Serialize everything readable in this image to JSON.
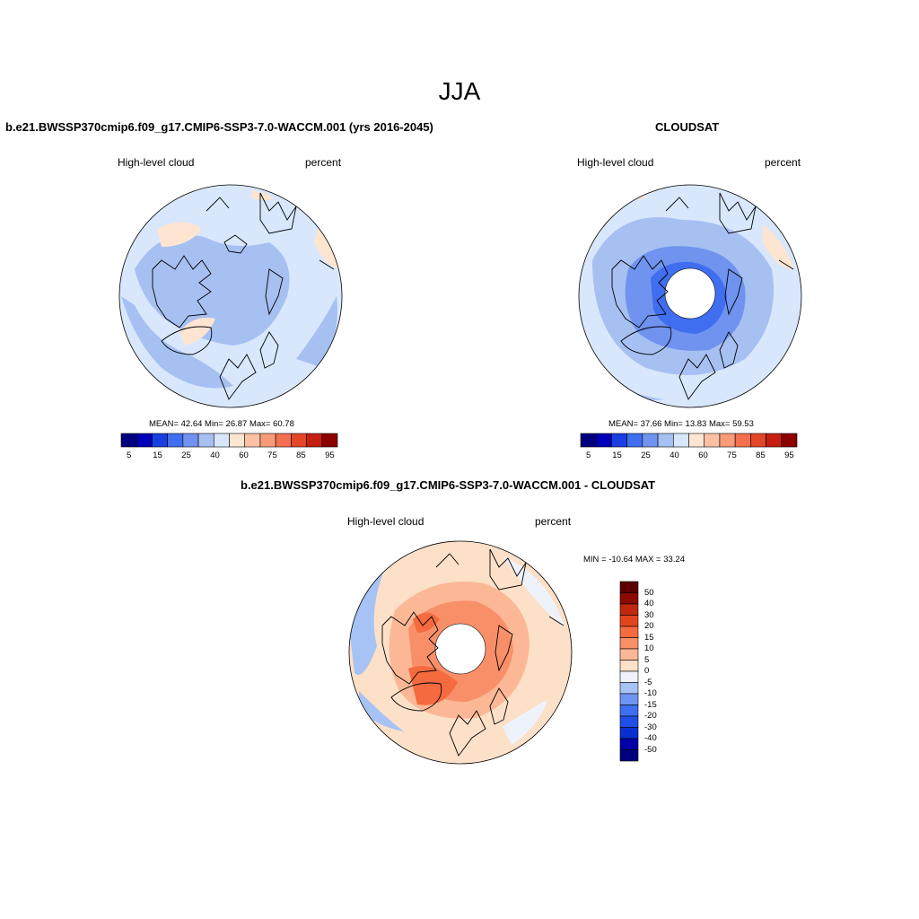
{
  "title": "JJA",
  "panels": [
    {
      "id": "model",
      "header": "b.e21.BWSSP370cmip6.f09_g17.CMIP6-SSP3-7.0-WACCM.001 (yrs 2016-2045)",
      "left_label": "High-level cloud",
      "right_label": "percent",
      "stats": "MEAN=  42.64  Min=  26.87  Max=  60.78",
      "colorbar_ticks": [
        "5",
        "15",
        "25",
        "40",
        "60",
        "75",
        "85",
        "95"
      ]
    },
    {
      "id": "obs",
      "header": "CLOUDSAT",
      "left_label": "High-level cloud",
      "right_label": "percent",
      "stats": "MEAN=  37.66  Min=  13.83  Max=  59.53",
      "colorbar_ticks": [
        "5",
        "15",
        "25",
        "40",
        "60",
        "75",
        "85",
        "95"
      ]
    },
    {
      "id": "diff",
      "header": "b.e21.BWSSP370cmip6.f09_g17.CMIP6-SSP3-7.0-WACCM.001 - CLOUDSAT",
      "left_label": "High-level cloud",
      "right_label": "percent",
      "stats": "MIN = -10.64 MAX =  33.24",
      "colorbar_ticks": [
        "50",
        "40",
        "30",
        "20",
        "15",
        "10",
        "5",
        "0",
        "-5",
        "-10",
        "-15",
        "-20",
        "-30",
        "-40",
        "-50"
      ]
    }
  ],
  "colors": {
    "abs_scale": [
      "#00007f",
      "#0000b8",
      "#1a3fe0",
      "#3f6ef0",
      "#6f93ee",
      "#a6c0f2",
      "#d8e7fc",
      "#fde5d2",
      "#fcc1a3",
      "#f99a78",
      "#f2704f",
      "#e34528",
      "#c41f10",
      "#8c0000"
    ],
    "diff_scale": [
      "#00007f",
      "#0000a8",
      "#0a2fd0",
      "#1f4fe6",
      "#3d6ff0",
      "#6f95f2",
      "#a7c3f5",
      "#eef3fb",
      "#fde0c8",
      "#fcb896",
      "#f98f68",
      "#f56a3f",
      "#e4431f",
      "#c02810",
      "#8c0a00",
      "#5a0000"
    ]
  }
}
